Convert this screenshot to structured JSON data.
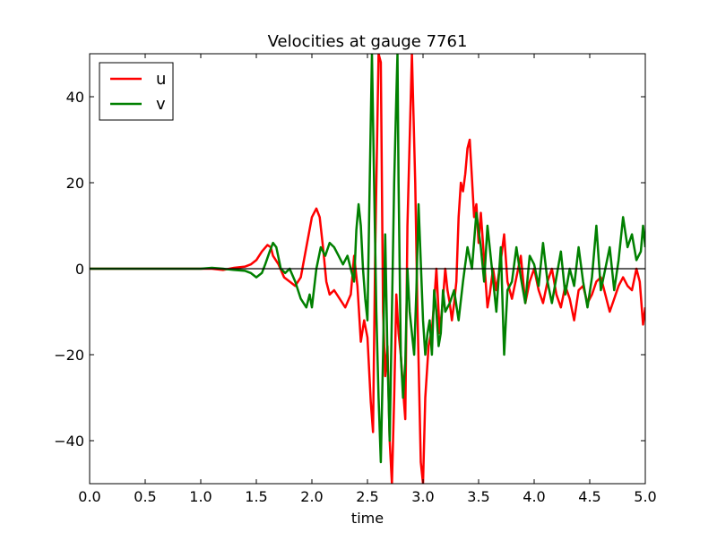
{
  "chart_data": {
    "type": "line",
    "title": "Velocities at gauge 7761",
    "xlabel": "time",
    "ylabel": "",
    "xlim": [
      0.0,
      5.0
    ],
    "ylim": [
      -50,
      50
    ],
    "xticks": [
      0.0,
      0.5,
      1.0,
      1.5,
      2.0,
      2.5,
      3.0,
      3.5,
      4.0,
      4.5,
      5.0
    ],
    "xtick_labels": [
      "0.0",
      "0.5",
      "1.0",
      "1.5",
      "2.0",
      "2.5",
      "3.0",
      "3.5",
      "4.0",
      "4.5",
      "5.0"
    ],
    "yticks": [
      -40,
      -20,
      0,
      20,
      40
    ],
    "ytick_labels": [
      "−40",
      "−20",
      "0",
      "20",
      "40"
    ],
    "grid": false,
    "legend_position": "top-left",
    "zero_line": true,
    "series": [
      {
        "name": "u",
        "color": "#ff0000",
        "points": [
          [
            0.0,
            0
          ],
          [
            1.0,
            0
          ],
          [
            1.1,
            0
          ],
          [
            1.2,
            -0.3
          ],
          [
            1.3,
            0.2
          ],
          [
            1.4,
            0.5
          ],
          [
            1.45,
            1
          ],
          [
            1.5,
            2
          ],
          [
            1.55,
            4
          ],
          [
            1.6,
            5.5
          ],
          [
            1.63,
            5
          ],
          [
            1.65,
            3
          ],
          [
            1.7,
            1
          ],
          [
            1.75,
            -2
          ],
          [
            1.8,
            -3
          ],
          [
            1.85,
            -4
          ],
          [
            1.9,
            -2
          ],
          [
            1.95,
            5
          ],
          [
            2.0,
            12
          ],
          [
            2.04,
            14
          ],
          [
            2.07,
            12
          ],
          [
            2.1,
            5
          ],
          [
            2.13,
            -3
          ],
          [
            2.16,
            -6
          ],
          [
            2.2,
            -5
          ],
          [
            2.25,
            -7
          ],
          [
            2.3,
            -9
          ],
          [
            2.35,
            -6
          ],
          [
            2.38,
            3
          ],
          [
            2.41,
            -4
          ],
          [
            2.44,
            -17
          ],
          [
            2.47,
            -12
          ],
          [
            2.5,
            -16
          ],
          [
            2.53,
            -31
          ],
          [
            2.55,
            -38
          ],
          [
            2.57,
            5
          ],
          [
            2.6,
            50
          ],
          [
            2.62,
            48
          ],
          [
            2.64,
            -10
          ],
          [
            2.66,
            -25
          ],
          [
            2.68,
            -18
          ],
          [
            2.7,
            -40
          ],
          [
            2.72,
            -50
          ],
          [
            2.74,
            -30
          ],
          [
            2.76,
            -6
          ],
          [
            2.78,
            -15
          ],
          [
            2.8,
            -20
          ],
          [
            2.82,
            -28
          ],
          [
            2.84,
            -35
          ],
          [
            2.86,
            10
          ],
          [
            2.88,
            30
          ],
          [
            2.9,
            50
          ],
          [
            2.93,
            20
          ],
          [
            2.95,
            -10
          ],
          [
            2.98,
            -45
          ],
          [
            3.0,
            -50
          ],
          [
            3.02,
            -30
          ],
          [
            3.05,
            -18
          ],
          [
            3.08,
            -14
          ],
          [
            3.1,
            -8
          ],
          [
            3.12,
            0
          ],
          [
            3.15,
            -15
          ],
          [
            3.18,
            -7
          ],
          [
            3.2,
            0
          ],
          [
            3.22,
            -5
          ],
          [
            3.24,
            -8
          ],
          [
            3.26,
            -12
          ],
          [
            3.28,
            -8
          ],
          [
            3.3,
            -3
          ],
          [
            3.32,
            12
          ],
          [
            3.34,
            20
          ],
          [
            3.36,
            18
          ],
          [
            3.38,
            22
          ],
          [
            3.4,
            28
          ],
          [
            3.42,
            30
          ],
          [
            3.44,
            21
          ],
          [
            3.46,
            12
          ],
          [
            3.48,
            15
          ],
          [
            3.5,
            6
          ],
          [
            3.52,
            13
          ],
          [
            3.55,
            2
          ],
          [
            3.58,
            -9
          ],
          [
            3.6,
            -6
          ],
          [
            3.63,
            0
          ],
          [
            3.66,
            -5
          ],
          [
            3.7,
            2
          ],
          [
            3.73,
            8
          ],
          [
            3.76,
            -3
          ],
          [
            3.8,
            -7
          ],
          [
            3.84,
            -2
          ],
          [
            3.88,
            3
          ],
          [
            3.92,
            -8
          ],
          [
            3.96,
            -3
          ],
          [
            4.0,
            0
          ],
          [
            4.04,
            -5
          ],
          [
            4.08,
            -8
          ],
          [
            4.12,
            -3
          ],
          [
            4.16,
            0
          ],
          [
            4.2,
            -6
          ],
          [
            4.24,
            -9
          ],
          [
            4.28,
            -4
          ],
          [
            4.32,
            -7
          ],
          [
            4.36,
            -12
          ],
          [
            4.4,
            -5
          ],
          [
            4.44,
            -4
          ],
          [
            4.48,
            -8
          ],
          [
            4.52,
            -6
          ],
          [
            4.56,
            -3
          ],
          [
            4.6,
            -2
          ],
          [
            4.64,
            -6
          ],
          [
            4.68,
            -10
          ],
          [
            4.72,
            -7
          ],
          [
            4.76,
            -4
          ],
          [
            4.8,
            -2
          ],
          [
            4.84,
            -4
          ],
          [
            4.88,
            -5
          ],
          [
            4.92,
            0
          ],
          [
            4.95,
            -3
          ],
          [
            4.98,
            -13
          ],
          [
            5.0,
            -9
          ]
        ]
      },
      {
        "name": "v",
        "color": "#008000",
        "points": [
          [
            0.0,
            0
          ],
          [
            1.0,
            0
          ],
          [
            1.1,
            0.2
          ],
          [
            1.2,
            0
          ],
          [
            1.3,
            -0.3
          ],
          [
            1.4,
            -0.5
          ],
          [
            1.45,
            -1
          ],
          [
            1.5,
            -2
          ],
          [
            1.55,
            -1
          ],
          [
            1.58,
            1
          ],
          [
            1.62,
            4
          ],
          [
            1.65,
            6
          ],
          [
            1.68,
            5
          ],
          [
            1.72,
            0
          ],
          [
            1.76,
            -1
          ],
          [
            1.8,
            0
          ],
          [
            1.85,
            -3
          ],
          [
            1.9,
            -7
          ],
          [
            1.95,
            -9
          ],
          [
            1.98,
            -6
          ],
          [
            2.0,
            -9
          ],
          [
            2.04,
            0
          ],
          [
            2.08,
            5
          ],
          [
            2.12,
            3
          ],
          [
            2.16,
            6
          ],
          [
            2.2,
            5
          ],
          [
            2.24,
            3
          ],
          [
            2.28,
            1
          ],
          [
            2.32,
            3
          ],
          [
            2.36,
            -1
          ],
          [
            2.38,
            -3
          ],
          [
            2.4,
            9
          ],
          [
            2.42,
            15
          ],
          [
            2.44,
            10
          ],
          [
            2.46,
            0
          ],
          [
            2.48,
            -7
          ],
          [
            2.5,
            -12
          ],
          [
            2.52,
            20
          ],
          [
            2.54,
            50
          ],
          [
            2.56,
            20
          ],
          [
            2.58,
            -10
          ],
          [
            2.6,
            -30
          ],
          [
            2.62,
            -45
          ],
          [
            2.64,
            -20
          ],
          [
            2.66,
            8
          ],
          [
            2.68,
            -20
          ],
          [
            2.7,
            -40
          ],
          [
            2.72,
            -10
          ],
          [
            2.74,
            20
          ],
          [
            2.76,
            40
          ],
          [
            2.77,
            50
          ],
          [
            2.78,
            20
          ],
          [
            2.8,
            -20
          ],
          [
            2.82,
            -30
          ],
          [
            2.84,
            -22
          ],
          [
            2.86,
            0
          ],
          [
            2.88,
            -10
          ],
          [
            2.9,
            -15
          ],
          [
            2.92,
            -20
          ],
          [
            2.94,
            -5
          ],
          [
            2.96,
            15
          ],
          [
            3.0,
            -12
          ],
          [
            3.02,
            -20
          ],
          [
            3.04,
            -15
          ],
          [
            3.06,
            -12
          ],
          [
            3.08,
            -20
          ],
          [
            3.1,
            -5
          ],
          [
            3.12,
            -10
          ],
          [
            3.14,
            -18
          ],
          [
            3.16,
            -15
          ],
          [
            3.18,
            -5
          ],
          [
            3.2,
            -10
          ],
          [
            3.24,
            -8
          ],
          [
            3.28,
            -5
          ],
          [
            3.32,
            -12
          ],
          [
            3.36,
            -3
          ],
          [
            3.4,
            5
          ],
          [
            3.44,
            0
          ],
          [
            3.48,
            13
          ],
          [
            3.52,
            5
          ],
          [
            3.55,
            -3
          ],
          [
            3.58,
            10
          ],
          [
            3.62,
            0
          ],
          [
            3.66,
            -10
          ],
          [
            3.7,
            5
          ],
          [
            3.73,
            -20
          ],
          [
            3.76,
            -5
          ],
          [
            3.8,
            -3
          ],
          [
            3.84,
            5
          ],
          [
            3.88,
            -2
          ],
          [
            3.92,
            -8
          ],
          [
            3.96,
            3
          ],
          [
            4.0,
            1
          ],
          [
            4.04,
            -4
          ],
          [
            4.08,
            6
          ],
          [
            4.12,
            -3
          ],
          [
            4.16,
            -8
          ],
          [
            4.2,
            -2
          ],
          [
            4.24,
            4
          ],
          [
            4.28,
            -6
          ],
          [
            4.32,
            0
          ],
          [
            4.36,
            -4
          ],
          [
            4.4,
            5
          ],
          [
            4.44,
            -3
          ],
          [
            4.48,
            -9
          ],
          [
            4.52,
            -2
          ],
          [
            4.56,
            10
          ],
          [
            4.6,
            -5
          ],
          [
            4.64,
            0
          ],
          [
            4.68,
            5
          ],
          [
            4.72,
            -5
          ],
          [
            4.76,
            2
          ],
          [
            4.8,
            12
          ],
          [
            4.84,
            5
          ],
          [
            4.88,
            8
          ],
          [
            4.92,
            2
          ],
          [
            4.96,
            4
          ],
          [
            4.98,
            10
          ],
          [
            5.0,
            5
          ]
        ]
      }
    ]
  }
}
